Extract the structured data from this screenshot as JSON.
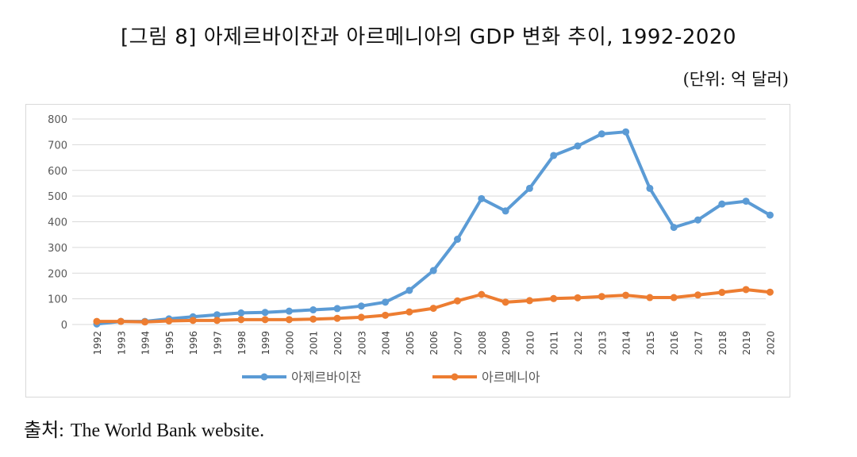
{
  "header": {
    "title": "[그림 8] 아제르바이잔과 아르메니아의 GDP 변화 추이, 1992-2020",
    "unit": "(단위: 억 달러)"
  },
  "footer": {
    "source_label": "출처:",
    "source_text": "The World Bank website."
  },
  "chart_data": {
    "type": "line",
    "title": "",
    "xlabel": "",
    "ylabel": "",
    "ylim": [
      0,
      800
    ],
    "yticks": [
      "0",
      "100",
      "200",
      "300",
      "400",
      "500",
      "600",
      "700",
      "800"
    ],
    "grid": true,
    "legend_position": "bottom",
    "categories": [
      "1992",
      "1993",
      "1994",
      "1995",
      "1996",
      "1997",
      "1998",
      "1999",
      "2000",
      "2001",
      "2002",
      "2003",
      "2004",
      "2005",
      "2006",
      "2007",
      "2008",
      "2009",
      "2010",
      "2011",
      "2012",
      "2013",
      "2014",
      "2015",
      "2016",
      "2017",
      "2018",
      "2019",
      "2020"
    ],
    "series": [
      {
        "name": "아제르바이잔",
        "color": "#5b9bd5",
        "values": [
          2,
          12,
          12,
          22,
          30,
          38,
          45,
          47,
          52,
          57,
          62,
          72,
          87,
          133,
          210,
          332,
          490,
          442,
          530,
          658,
          695,
          742,
          750,
          530,
          378,
          407,
          469,
          480,
          426
        ]
      },
      {
        "name": "아르메니아",
        "color": "#ed7d31",
        "values": [
          12,
          12,
          10,
          14,
          16,
          16,
          19,
          19,
          19,
          21,
          24,
          28,
          36,
          49,
          63,
          92,
          117,
          87,
          93,
          101,
          104,
          109,
          114,
          105,
          105,
          115,
          125,
          136,
          126
        ]
      }
    ]
  }
}
